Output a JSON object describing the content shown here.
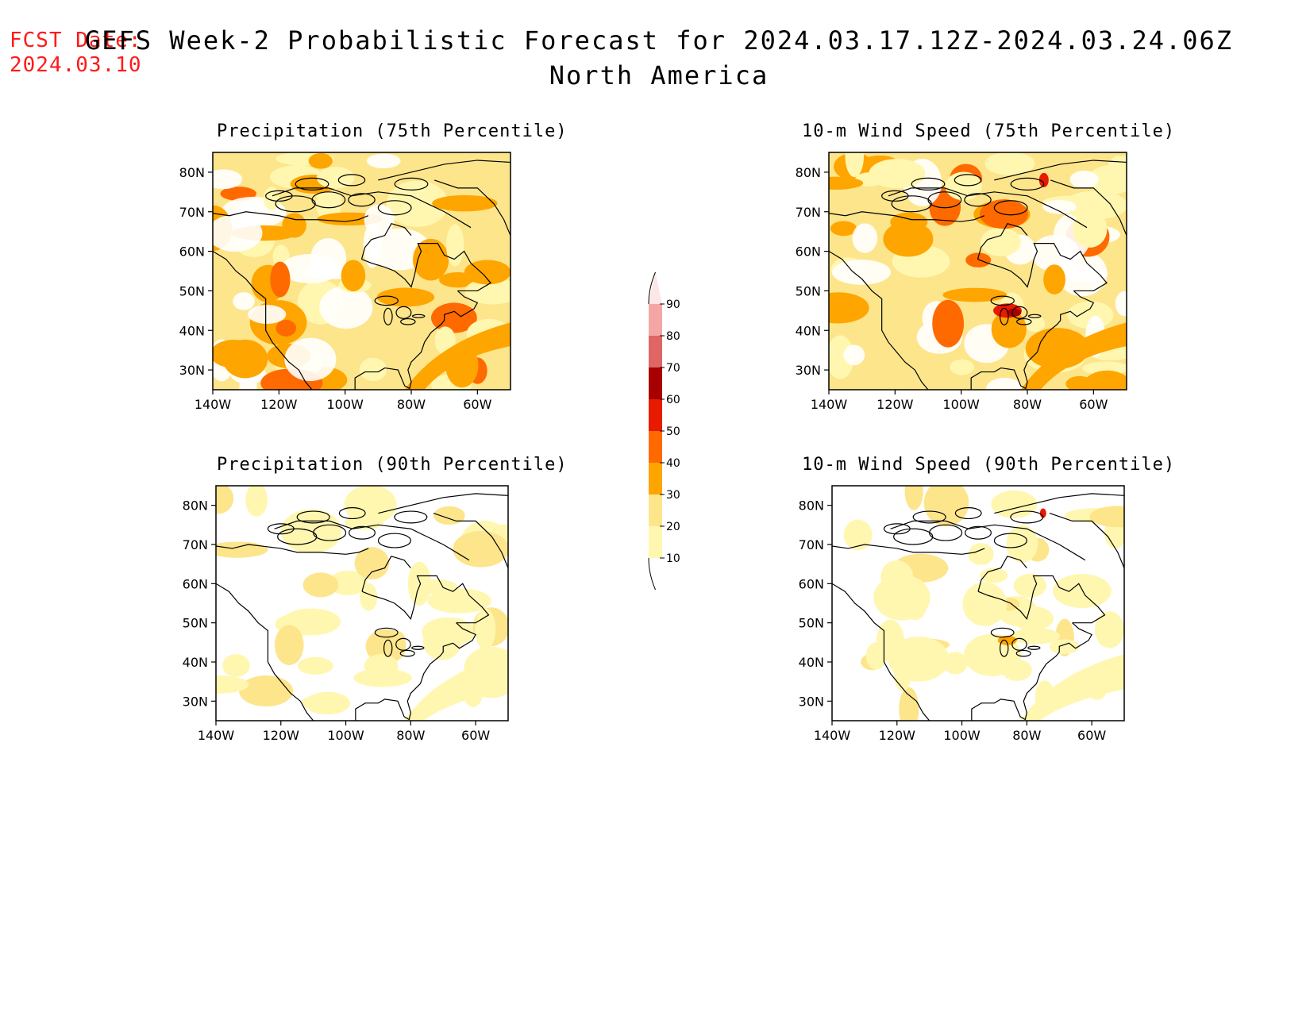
{
  "header": {
    "fcst_label": "FCST Date:",
    "fcst_date": "2024.03.10",
    "title_line1": "GEFS Week-2 Probabilistic Forecast for 2024.03.17.12Z-2024.03.24.06Z",
    "title_line2": "North America"
  },
  "axes": {
    "lat_labels": [
      "80N",
      "70N",
      "60N",
      "50N",
      "40N",
      "30N"
    ],
    "lon_labels": [
      "140W",
      "120W",
      "100W",
      "80W",
      "60W"
    ]
  },
  "panels": [
    {
      "title": "Precipitation (75th Percentile)",
      "level": "high"
    },
    {
      "title": "10-m Wind Speed (75th Percentile)",
      "level": "high"
    },
    {
      "title": "Precipitation (90th Percentile)",
      "level": "low"
    },
    {
      "title": "10-m Wind Speed (90th Percentile)",
      "level": "low"
    }
  ],
  "colorbar": {
    "levels": [
      "10",
      "20",
      "30",
      "40",
      "50",
      "60",
      "70",
      "80",
      "90"
    ],
    "colors": [
      "#fff7b0",
      "#fde58c",
      "#ffa500",
      "#ff6a00",
      "#e81a00",
      "#a80000",
      "#e06666",
      "#f4a6a6",
      "#fde6e6"
    ]
  }
}
